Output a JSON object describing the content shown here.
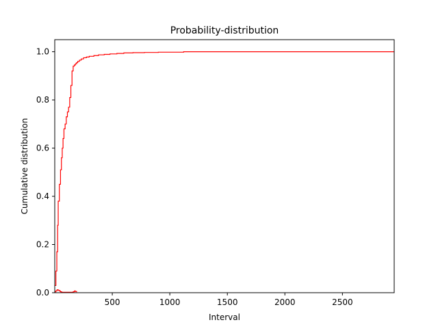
{
  "chart_data": {
    "type": "line",
    "title": "Probability-distribution",
    "xlabel": "Interval",
    "ylabel": "Cumulative distribution",
    "xlim": [
      0,
      2950
    ],
    "ylim": [
      0,
      1.05
    ],
    "x_ticks": [
      500,
      1000,
      1500,
      2000,
      2500
    ],
    "y_ticks": [
      0.0,
      0.2,
      0.4,
      0.6,
      0.8,
      1.0
    ],
    "x_tick_labels": [
      "500",
      "1000",
      "1500",
      "2000",
      "2500"
    ],
    "y_tick_labels": [
      "0.0",
      "0.2",
      "0.4",
      "0.6",
      "0.8",
      "1.0"
    ],
    "grid": false,
    "legend": "none",
    "line_color": "#ff0000",
    "series": [
      {
        "style": "step",
        "x": [
          0,
          10,
          18,
          25,
          30,
          40,
          50,
          58,
          65,
          72,
          80,
          90,
          100,
          110,
          120,
          130,
          140,
          150,
          160,
          170,
          180,
          190,
          200,
          215,
          230,
          250,
          275,
          300,
          340,
          380,
          430,
          480,
          540,
          600,
          680,
          780,
          900,
          1120,
          1400,
          2950
        ],
        "y": [
          0.03,
          0.09,
          0.17,
          0.28,
          0.38,
          0.45,
          0.51,
          0.56,
          0.6,
          0.64,
          0.68,
          0.7,
          0.73,
          0.75,
          0.77,
          0.81,
          0.86,
          0.92,
          0.94,
          0.945,
          0.95,
          0.955,
          0.96,
          0.965,
          0.97,
          0.975,
          0.978,
          0.981,
          0.984,
          0.987,
          0.989,
          0.991,
          0.993,
          0.995,
          0.996,
          0.997,
          0.998,
          1.0,
          1.0,
          1.0
        ]
      },
      {
        "style": "step",
        "x": [
          0,
          10,
          20,
          30,
          40,
          50,
          60,
          150,
          160,
          170,
          180,
          190
        ],
        "y": [
          0.004,
          0.008,
          0.012,
          0.01,
          0.007,
          0.004,
          0.002,
          0.002,
          0.004,
          0.007,
          0.005,
          0.002
        ]
      }
    ]
  }
}
